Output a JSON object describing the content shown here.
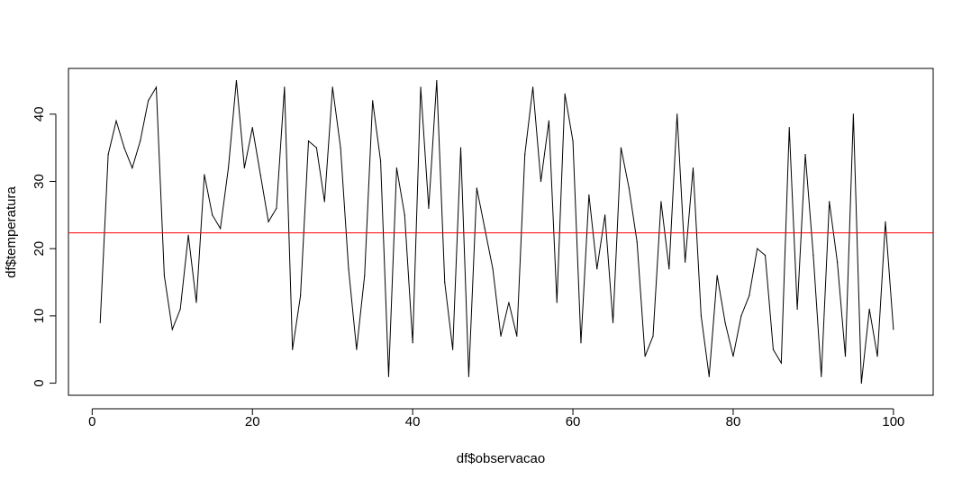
{
  "chart_data": {
    "type": "line",
    "title": "",
    "xlabel": "df$observacao",
    "ylabel": "df$temperatura",
    "xlim": [
      -2.96,
      104.96
    ],
    "ylim": [
      -1.8,
      46.8
    ],
    "x_ticks": [
      0,
      20,
      40,
      60,
      80,
      100
    ],
    "x_tick_labels": [
      "0",
      "20",
      "40",
      "60",
      "80",
      "100"
    ],
    "y_ticks": [
      0,
      10,
      20,
      30,
      40
    ],
    "y_tick_labels": [
      "0",
      "10",
      "20",
      "30",
      "40"
    ],
    "grid": false,
    "legend": "none",
    "series": [
      {
        "color": "#000000",
        "x": [
          1,
          2,
          3,
          4,
          5,
          6,
          7,
          8,
          9,
          10,
          11,
          12,
          13,
          14,
          15,
          16,
          17,
          18,
          19,
          20,
          21,
          22,
          23,
          24,
          25,
          26,
          27,
          28,
          29,
          30,
          31,
          32,
          33,
          34,
          35,
          36,
          37,
          38,
          39,
          40,
          41,
          42,
          43,
          44,
          45,
          46,
          47,
          48,
          49,
          50,
          51,
          52,
          53,
          54,
          55,
          56,
          57,
          58,
          59,
          60,
          61,
          62,
          63,
          64,
          65,
          66,
          67,
          68,
          69,
          70,
          71,
          72,
          73,
          74,
          75,
          76,
          77,
          78,
          79,
          80,
          81,
          82,
          83,
          84,
          85,
          86,
          87,
          88,
          89,
          90,
          91,
          92,
          93,
          94,
          95,
          96,
          97,
          98,
          99,
          100
        ],
        "values": [
          9,
          34,
          39,
          35,
          32,
          36,
          42,
          44,
          16,
          8,
          11,
          22,
          12,
          31,
          25,
          23,
          32,
          45,
          32,
          38,
          31,
          24,
          26,
          44,
          5,
          13,
          36,
          35,
          27,
          44,
          35,
          17,
          5,
          16,
          42,
          33,
          1,
          32,
          25,
          6,
          44,
          26,
          45,
          15,
          5,
          35,
          1,
          29,
          23,
          17,
          7,
          12,
          7,
          34,
          44,
          30,
          39,
          12,
          43,
          36,
          6,
          28,
          17,
          25,
          9,
          35,
          29,
          21,
          4,
          7,
          27,
          17,
          40,
          18,
          32,
          10,
          1,
          16,
          9,
          4,
          10,
          13,
          20,
          19,
          5,
          3,
          38,
          11,
          34,
          19,
          1,
          27,
          18,
          4,
          40,
          0,
          11,
          4,
          24,
          8
        ]
      }
    ],
    "reference_line": {
      "orientation": "horizontal",
      "y": 22.35,
      "color": "#ff0000"
    }
  }
}
